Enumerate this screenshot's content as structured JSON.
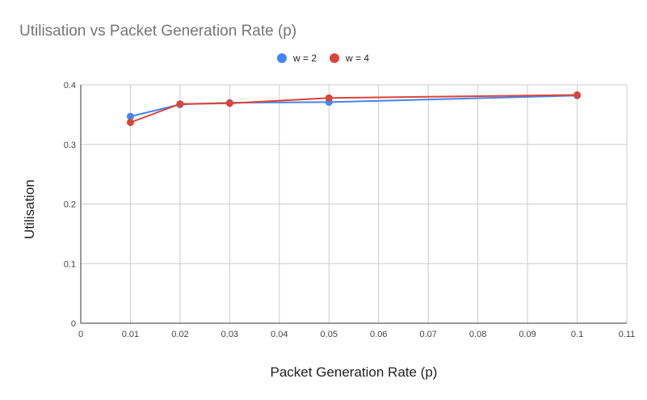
{
  "chart_data": {
    "type": "line",
    "title": "Utilisation vs Packet Generation Rate (p)",
    "xlabel": "Packet Generation Rate (p)",
    "ylabel": "Utilisation",
    "xlim": [
      0,
      0.11
    ],
    "ylim": [
      0,
      0.4
    ],
    "x_ticks": [
      "0",
      "0.01",
      "0.02",
      "0.03",
      "0.04",
      "0.05",
      "0.06",
      "0.07",
      "0.08",
      "0.09",
      "0.1",
      "0.11"
    ],
    "y_ticks": [
      "0",
      "0.1",
      "0.2",
      "0.3",
      "0.4"
    ],
    "grid": true,
    "legend_position": "top-center",
    "x": [
      0.01,
      0.02,
      0.03,
      0.05,
      0.1
    ],
    "series": [
      {
        "name": "w = 2",
        "color": "#4285f4",
        "values": [
          0.347,
          0.367,
          0.37,
          0.371,
          0.382
        ]
      },
      {
        "name": "w = 4",
        "color": "#db4437",
        "values": [
          0.337,
          0.368,
          0.369,
          0.378,
          0.383
        ]
      }
    ]
  }
}
